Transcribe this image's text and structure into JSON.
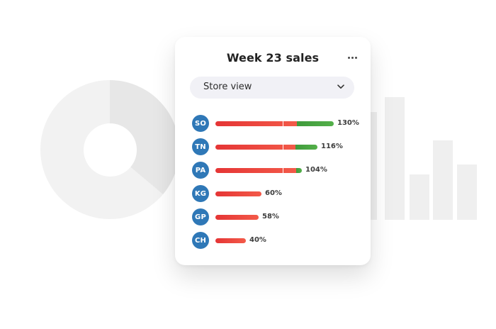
{
  "card": {
    "title": "Week 23 sales",
    "more_icon": "ellipsis-icon",
    "select": {
      "value": "Store view",
      "icon": "chevron-down-icon"
    }
  },
  "stores": [
    {
      "code": "SO",
      "percent": 130,
      "label": "130%"
    },
    {
      "code": "TN",
      "percent": 116,
      "label": "116%"
    },
    {
      "code": "PA",
      "percent": 104,
      "label": "104%"
    },
    {
      "code": "KG",
      "percent": 60,
      "label": "60%"
    },
    {
      "code": "GP",
      "percent": 58,
      "label": "58%"
    },
    {
      "code": "CH",
      "percent": 40,
      "label": "40%"
    }
  ],
  "colors": {
    "badge": "#2f78b7",
    "below_target": "#e53535",
    "above_target": "#4ba645",
    "background_shapes": "#efefef"
  },
  "background": {
    "donut_icon": "donut-chart-decoration",
    "bars_icon": "bar-chart-decoration",
    "bar_levels": [
      0.65,
      0.84,
      0.62,
      0.39,
      0.65,
      0.47
    ]
  }
}
